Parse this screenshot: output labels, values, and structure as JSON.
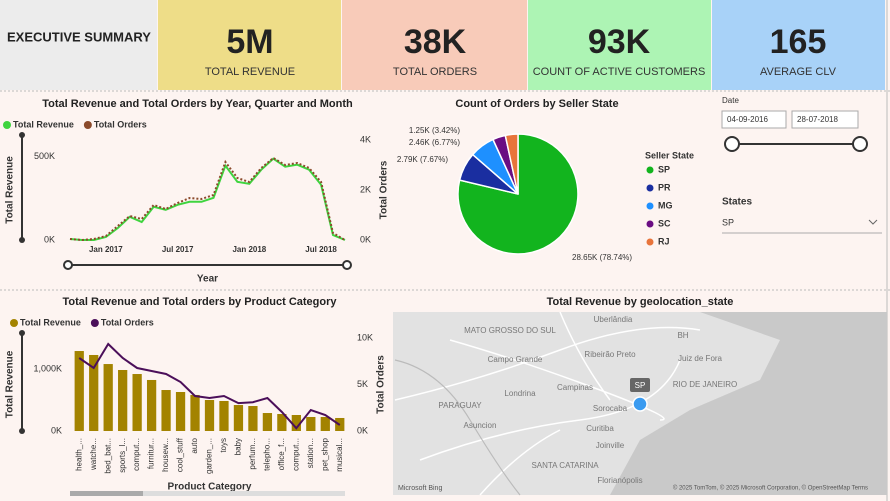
{
  "header": {
    "title": "EXECUTIVE SUMMARY"
  },
  "kpis": [
    {
      "value": "5M",
      "label": "TOTAL REVENUE"
    },
    {
      "value": "38K",
      "label": "TOTAL ORDERS"
    },
    {
      "value": "93K",
      "label": "COUNT OF ACTIVE CUSTOMERS"
    },
    {
      "value": "165",
      "label": "AVERAGE CLV"
    }
  ],
  "chart_data": [
    {
      "type": "line",
      "title": "Total Revenue and Total Orders by Year, Quarter and Month",
      "x_label": "Year",
      "y_label": "Total Revenue",
      "y2_label": "Total Orders",
      "categories": [
        null,
        null,
        null,
        "Jan 2017",
        null,
        null,
        null,
        null,
        null,
        "Jul 2017",
        null,
        null,
        null,
        null,
        null,
        "Jan 2018",
        null,
        null,
        null,
        null,
        null,
        "Jul 2018",
        null,
        null
      ],
      "series": [
        {
          "name": "Total Revenue",
          "color": "#3fd43f",
          "values": [
            6000,
            0,
            0,
            18000,
            72000,
            139000,
            108000,
            199000,
            181000,
            211000,
            229000,
            229000,
            253000,
            446000,
            349000,
            337000,
            422000,
            488000,
            440000,
            452000,
            422000,
            331000,
            30000,
            0
          ]
        },
        {
          "name": "Total Orders",
          "color": "#8b4a2b",
          "axis": "y2",
          "values": [
            40,
            0,
            40,
            160,
            560,
            960,
            840,
            1400,
            1240,
            1480,
            1680,
            1640,
            1800,
            3120,
            2480,
            2320,
            2880,
            3280,
            3000,
            3080,
            2880,
            2320,
            280,
            0
          ]
        }
      ],
      "ylim": [
        0,
        600000
      ],
      "yticks": [
        {
          "value": 0,
          "label": "0K"
        },
        {
          "value": 500000,
          "label": "500K"
        }
      ],
      "y2lim": [
        0,
        4000
      ],
      "y2ticks": [
        {
          "value": 0,
          "label": "0K"
        },
        {
          "value": 2000,
          "label": "2K"
        },
        {
          "value": 4000,
          "label": "4K"
        }
      ]
    },
    {
      "type": "pie",
      "title": "Count of Orders by Seller State",
      "legend_title": "Seller State",
      "categories": [
        "SP",
        "PR",
        "MG",
        "SC",
        "RJ"
      ],
      "values": [
        28.65,
        2.79,
        2.46,
        1.25,
        1.24
      ],
      "value_labels": [
        "28.65K (78.74%)",
        "2.79K (7.67%)",
        "2.46K (6.77%)",
        "1.25K (3.42%)",
        null
      ],
      "colors": [
        "#12b41e",
        "#1a2ea0",
        "#1e90ff",
        "#6a0d83",
        "#e8743b"
      ]
    },
    {
      "type": "bar",
      "title": "Total Revenue and Total orders by Product Category",
      "x_label": "Product Category",
      "y_label": "Total Revenue",
      "y2_label": "Total Orders",
      "categories": [
        "health_...",
        "watche...",
        "bed_bat...",
        "sports_l...",
        "comput...",
        "furnitur...",
        "housew...",
        "cool_stuff",
        "auto",
        "garden_...",
        "toys",
        "baby",
        "perfum...",
        "telepho...",
        "office_f...",
        "comput...",
        "station...",
        "pet_shop",
        "musical..."
      ],
      "series": [
        {
          "name": "Total Revenue",
          "color": "#a38300",
          "values": [
            1290000,
            1226000,
            1080000,
            984000,
            919000,
            823000,
            661000,
            629000,
            581000,
            500000,
            484000,
            419000,
            403000,
            290000,
            274000,
            258000,
            226000,
            226000,
            210000
          ]
        },
        {
          "name": "Total Orders",
          "color": "#4b0f5a",
          "axis": "y2",
          "values": [
            7850,
            6770,
            9350,
            7850,
            6770,
            6450,
            6130,
            5270,
            3760,
            3550,
            3760,
            3000,
            3100,
            3550,
            2040,
            300,
            2260,
            1720,
            650
          ]
        }
      ],
      "ylim": [
        0,
        1500000
      ],
      "yticks": [
        {
          "value": 0,
          "label": "0K"
        },
        {
          "value": 1000000,
          "label": "1,000K"
        }
      ],
      "y2lim": [
        0,
        10000
      ],
      "y2ticks": [
        {
          "value": 0,
          "label": "0K"
        },
        {
          "value": 5000,
          "label": "5K"
        },
        {
          "value": 10000,
          "label": "10K"
        }
      ]
    }
  ],
  "slicers": {
    "date_title": "Date",
    "start": "04-09-2016",
    "end": "28-07-2018",
    "states_title": "States",
    "state": "SP"
  },
  "map": {
    "title": "Total Revenue by geolocation_state",
    "places": [
      "MATO GROSSO DO SUL",
      "Uberlândia",
      "BH",
      "Ribeirão Preto",
      "Juiz de Fora",
      "Campo Grande",
      "Campinas",
      "Londrina",
      "PARAGUAY",
      "Sorocaba",
      "RIO DE JANEIRO",
      "Asuncion",
      "Curitiba",
      "Joinville",
      "SANTA CATARINA",
      "Florianópolis"
    ],
    "marker": "SP",
    "footer": "© 2025 TomTom, © 2025 Microsoft Corporation, © OpenStreetMap Terms",
    "brand": "Microsoft Bing"
  }
}
